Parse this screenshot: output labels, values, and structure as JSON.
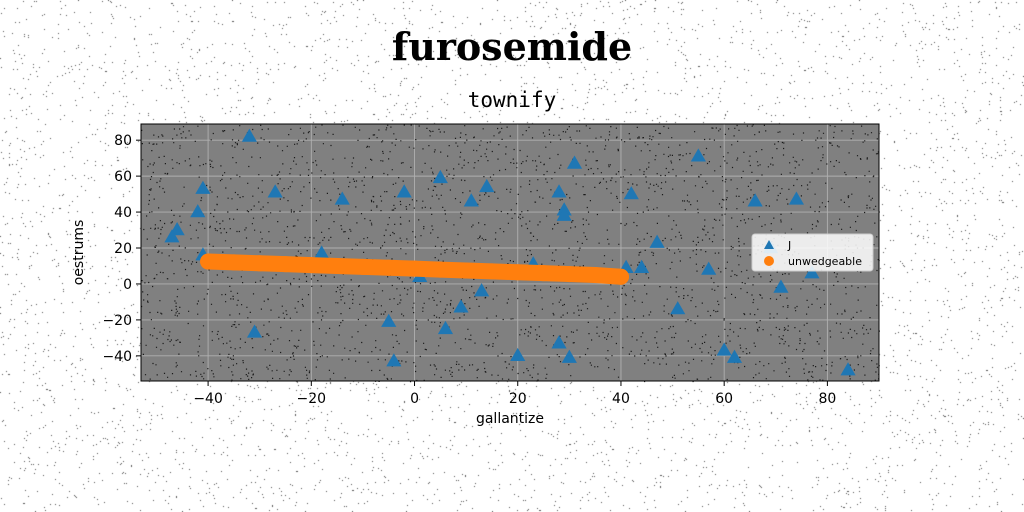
{
  "page": {
    "suptitle": "furosemide"
  },
  "chart_data": {
    "type": "scatter",
    "title": "townify",
    "xlabel": "gallantize",
    "ylabel": "oestrums",
    "xlim": [
      -53,
      90
    ],
    "ylim": [
      -54,
      89
    ],
    "xticks": [
      -40,
      -20,
      0,
      20,
      40,
      60,
      80
    ],
    "yticks": [
      -40,
      -20,
      0,
      20,
      40,
      60,
      80
    ],
    "grid": true,
    "background": "#808080",
    "legend_position": "center-right",
    "series": [
      {
        "name": "J",
        "marker": "triangle",
        "color": "#1f77b4",
        "points": [
          [
            -32,
            82
          ],
          [
            -41,
            53
          ],
          [
            -27,
            51
          ],
          [
            -42,
            40
          ],
          [
            -46,
            30
          ],
          [
            -47,
            26
          ],
          [
            -41,
            16
          ],
          [
            -14,
            47
          ],
          [
            -18,
            17
          ],
          [
            -31,
            -27
          ],
          [
            -2,
            51
          ],
          [
            5,
            59
          ],
          [
            11,
            46
          ],
          [
            14,
            54
          ],
          [
            1,
            4
          ],
          [
            13,
            -4
          ],
          [
            9,
            -13
          ],
          [
            6,
            -25
          ],
          [
            -5,
            -21
          ],
          [
            -4,
            -43
          ],
          [
            20,
            -40
          ],
          [
            23,
            11
          ],
          [
            28,
            51
          ],
          [
            29,
            41
          ],
          [
            29,
            38
          ],
          [
            31,
            67
          ],
          [
            28,
            -33
          ],
          [
            30,
            -41
          ],
          [
            41,
            9
          ],
          [
            44,
            9
          ],
          [
            42,
            50
          ],
          [
            47,
            23
          ],
          [
            51,
            -14
          ],
          [
            55,
            71
          ],
          [
            57,
            8
          ],
          [
            60,
            -37
          ],
          [
            62,
            -41
          ],
          [
            66,
            46
          ],
          [
            69,
            20
          ],
          [
            71,
            -2
          ],
          [
            74,
            47
          ],
          [
            77,
            6
          ],
          [
            84,
            -48
          ]
        ]
      },
      {
        "name": "unwedgeable",
        "marker": "circle",
        "color": "#ff7f0e",
        "points": [
          [
            -40,
            12.5
          ],
          [
            -35,
            12.0
          ],
          [
            -30,
            11.5
          ],
          [
            -25,
            11.0
          ],
          [
            -20,
            10.5
          ],
          [
            -15,
            10.0
          ],
          [
            -10,
            9.5
          ],
          [
            -5,
            9.0
          ],
          [
            0,
            8.5
          ],
          [
            5,
            8.0
          ],
          [
            10,
            7.5
          ],
          [
            15,
            7.0
          ],
          [
            20,
            6.5
          ],
          [
            25,
            6.0
          ],
          [
            30,
            5.5
          ],
          [
            35,
            5.0
          ],
          [
            40,
            4.0
          ]
        ]
      }
    ]
  }
}
